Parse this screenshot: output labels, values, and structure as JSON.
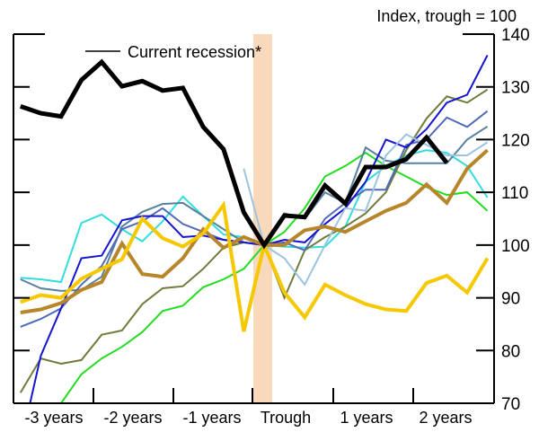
{
  "chart_data": {
    "type": "line",
    "ylabel": "Index, trough = 100",
    "ylim": [
      70,
      140
    ],
    "yticks": [
      70,
      80,
      90,
      100,
      110,
      120,
      130,
      140
    ],
    "x_quarters": [
      -12,
      -11,
      -10,
      -9,
      -8,
      -7,
      -6,
      -5,
      -4,
      -3,
      -2,
      -1,
      0,
      1,
      2,
      3,
      4,
      5,
      6,
      7,
      8,
      9,
      10,
      11
    ],
    "xtick_labels": [
      "-3 years",
      "-2 years",
      "-1 years",
      "Trough",
      "1 years",
      "2 years"
    ],
    "shaded_band": "Trough",
    "shade_color": "#f9d9bc",
    "legend": {
      "placement": "top-left",
      "entries": [
        "Current recession*"
      ]
    },
    "series": [
      {
        "color": "#33dddd",
        "width": 2,
        "values": [
          93.8,
          93.5,
          93,
          104.2,
          105.8,
          103,
          100.7,
          104.5,
          109.2,
          105.5,
          102,
          101.5,
          100,
          99.7,
          99.5,
          99.7,
          103.5,
          112,
          115,
          117,
          118,
          117.5,
          115,
          109
        ]
      },
      {
        "color": "#22dd22",
        "width": 2,
        "values": [
          62,
          66,
          70,
          75.5,
          78.5,
          80.7,
          83.5,
          87.5,
          88.5,
          92,
          93.5,
          95.5,
          100,
          102.5,
          107,
          113,
          115,
          117.5,
          115,
          113,
          111,
          109.5,
          110,
          106.5
        ]
      },
      {
        "color": "#6e7c3c",
        "width": 2,
        "values": [
          72,
          78.5,
          77.5,
          78.2,
          83,
          83.8,
          88.8,
          91.8,
          92.2,
          95.5,
          99.5,
          100.5,
          100,
          90,
          99,
          101.5,
          103.5,
          106,
          110,
          118,
          124,
          128.2,
          127,
          129.5
        ]
      },
      {
        "color": "#5880a0",
        "width": 2,
        "values": [
          93.5,
          91.8,
          91.3,
          91.5,
          94,
          103.5,
          106.3,
          107.8,
          108,
          105.5,
          103,
          100.5,
          100,
          106,
          105,
          110,
          108,
          118.5,
          116,
          115.5,
          115.5,
          115.5,
          120,
          122.5
        ]
      },
      {
        "color": "#4f6ab8",
        "width": 2,
        "values": [
          84.5,
          86,
          88,
          92.5,
          96,
          103,
          104.5,
          107,
          104,
          102.5,
          101,
          100.5,
          100,
          100.5,
          99,
          105,
          108,
          110.5,
          110.5,
          119,
          120,
          124.2,
          122.4,
          125.4
        ]
      },
      {
        "color": "#1515d0",
        "width": 2,
        "values": [
          62,
          79,
          88,
          97.5,
          98,
          104.7,
          105.5,
          105.5,
          101.5,
          101.8,
          101,
          100.5,
          100,
          101,
          100.5,
          104,
          107,
          112,
          120,
          118.5,
          122,
          127,
          128.5,
          136
        ]
      },
      {
        "color": "#9cc4e0",
        "width": 2,
        "values": [
          null,
          null,
          null,
          null,
          null,
          null,
          null,
          null,
          null,
          null,
          null,
          114.5,
          100,
          97.5,
          92.5,
          100,
          107,
          106.5,
          117,
          121,
          119,
          117,
          117,
          119.5
        ]
      },
      {
        "color": "#b8862a",
        "width": 4,
        "values": [
          87.2,
          87.8,
          89,
          91.5,
          93,
          100.3,
          94.5,
          94,
          97.5,
          103,
          99.5,
          101.5,
          100,
          100,
          102.8,
          103.5,
          102.5,
          104.5,
          106.5,
          108,
          111.5,
          108,
          114.5,
          118
        ]
      },
      {
        "color": "#f5c800",
        "width": 4,
        "values": [
          89.2,
          90.5,
          90,
          93.6,
          95.5,
          97.3,
          105,
          101.3,
          99.7,
          102.2,
          107.6,
          83.6,
          100,
          91,
          86.3,
          92.5,
          90.5,
          88.8,
          87.8,
          87.5,
          92.8,
          94.2,
          91,
          97.5
        ]
      },
      {
        "name": "Current recession*",
        "color": "#000000",
        "width": 5,
        "values": [
          126.3,
          125,
          124.4,
          131.3,
          134.7,
          130.1,
          131.1,
          129.3,
          129.8,
          122.4,
          118.2,
          106.2,
          100,
          105.6,
          105.3,
          111.3,
          107.9,
          114.8,
          114.8,
          116.3,
          120.4,
          115.6,
          null,
          null
        ]
      }
    ]
  }
}
